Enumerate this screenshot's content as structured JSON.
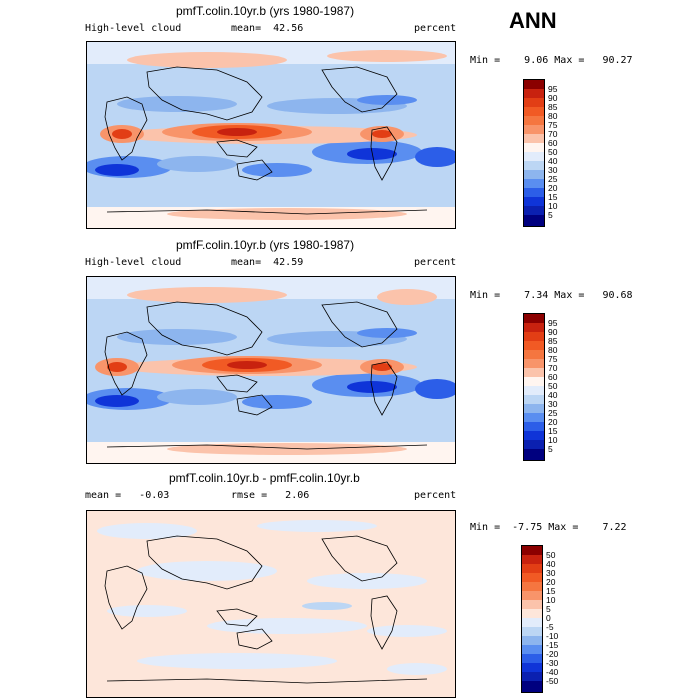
{
  "header": {
    "season": "ANN"
  },
  "panels": [
    {
      "title": "pmfT.colin.10yr.b (yrs 1980-1987)",
      "left_label": "High-level cloud",
      "mean_text": "mean=  42.56",
      "units": "percent",
      "minmax_text": "Min =    9.06 Max =   90.27",
      "colorbar": {
        "labels": [
          "95",
          "90",
          "85",
          "80",
          "75",
          "70",
          "60",
          "50",
          "40",
          "30",
          "25",
          "20",
          "15",
          "10",
          "5"
        ],
        "colors": [
          "#8b0000",
          "#c8220f",
          "#e23e15",
          "#f15a24",
          "#f57640",
          "#f8946a",
          "#fbc3ab",
          "#fff5f0",
          "#e2ecfb",
          "#bcd6f4",
          "#8db5ee",
          "#5a8ef0",
          "#2c5ee8",
          "#0f34d8",
          "#0b20b0",
          "#00007f"
        ]
      }
    },
    {
      "title": "pmfF.colin.10yr.b (yrs 1980-1987)",
      "left_label": "High-level cloud",
      "mean_text": "mean=  42.59",
      "units": "percent",
      "minmax_text": "Min =    7.34 Max =   90.68",
      "colorbar": {
        "labels": [
          "95",
          "90",
          "85",
          "80",
          "75",
          "70",
          "60",
          "50",
          "40",
          "30",
          "25",
          "20",
          "15",
          "10",
          "5"
        ],
        "colors": [
          "#8b0000",
          "#c8220f",
          "#e23e15",
          "#f15a24",
          "#f57640",
          "#f8946a",
          "#fbc3ab",
          "#fff5f0",
          "#e2ecfb",
          "#bcd6f4",
          "#8db5ee",
          "#5a8ef0",
          "#2c5ee8",
          "#0f34d8",
          "#0b20b0",
          "#00007f"
        ]
      }
    },
    {
      "title": "pmfT.colin.10yr.b - pmfF.colin.10yr.b",
      "left_label": "mean =   -0.03",
      "mean_text": "rmse =   2.06",
      "units": "percent",
      "minmax_text": "Min =  -7.75 Max =    7.22",
      "colorbar": {
        "labels": [
          "50",
          "40",
          "30",
          "20",
          "15",
          "10",
          "5",
          "0",
          "-5",
          "-10",
          "-15",
          "-20",
          "-30",
          "-40",
          "-50"
        ],
        "colors": [
          "#8b0000",
          "#c8220f",
          "#e23e15",
          "#f15a24",
          "#f57640",
          "#f8946a",
          "#fbc3ab",
          "#fde6da",
          "#e2ecfb",
          "#bcd6f4",
          "#8db5ee",
          "#5a8ef0",
          "#2c5ee8",
          "#0f34d8",
          "#0b20b0",
          "#00007f"
        ]
      }
    }
  ],
  "colors": {
    "map_background": "#bcd6f4",
    "coastline": "#000000"
  }
}
